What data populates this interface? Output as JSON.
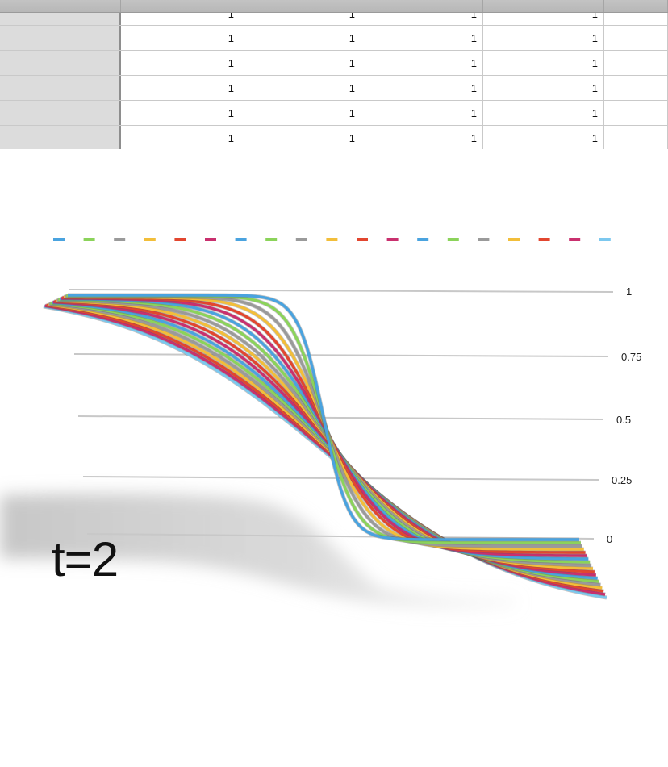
{
  "spreadsheet": {
    "partial_row": [
      "",
      "1",
      "1",
      "1",
      "1",
      ""
    ],
    "rows": [
      [
        "",
        "1",
        "1",
        "1",
        "1",
        ""
      ],
      [
        "",
        "1",
        "1",
        "1",
        "1",
        ""
      ],
      [
        "",
        "1",
        "1",
        "1",
        "1",
        ""
      ],
      [
        "",
        "1",
        "1",
        "1",
        "1",
        ""
      ],
      [
        "",
        "1",
        "1",
        "1",
        "1",
        ""
      ]
    ]
  },
  "time_label": "t=2",
  "chart_data": {
    "type": "line",
    "title": "",
    "xlabel": "",
    "ylabel": "",
    "ylim": [
      0,
      1
    ],
    "yticks": [
      "0",
      "0.25",
      "0.5",
      "0.75",
      "1"
    ],
    "yticks_values": [
      0,
      0.25,
      0.5,
      0.75,
      1
    ],
    "grid": true,
    "legend_placement": "top",
    "perspective_3d": true,
    "palette": [
      "#4aa3df",
      "#8bd35a",
      "#9a9a9a",
      "#f2be3a",
      "#e2462f",
      "#c9306e"
    ],
    "series_count": 19,
    "series_note_shape": "decreasing sigmoid from 1 to 0; steepness decreases with series index",
    "x": [
      0,
      0.05,
      0.1,
      0.15,
      0.2,
      0.25,
      0.3,
      0.35,
      0.4,
      0.45,
      0.5,
      0.55,
      0.6,
      0.65,
      0.7,
      0.75,
      0.8,
      0.85,
      0.9,
      0.95,
      1
    ],
    "series": [
      {
        "steepness": 40
      },
      {
        "steepness": 30
      },
      {
        "steepness": 24
      },
      {
        "steepness": 20
      },
      {
        "steepness": 17
      },
      {
        "steepness": 15
      },
      {
        "steepness": 13.5
      },
      {
        "steepness": 12.2
      },
      {
        "steepness": 11.1
      },
      {
        "steepness": 10.2
      },
      {
        "steepness": 9.4
      },
      {
        "steepness": 8.7
      },
      {
        "steepness": 8.1
      },
      {
        "steepness": 7.6
      },
      {
        "steepness": 7.1
      },
      {
        "steepness": 6.7
      },
      {
        "steepness": 6.3
      },
      {
        "steepness": 6.0
      },
      {
        "steepness": 5.7
      }
    ]
  }
}
